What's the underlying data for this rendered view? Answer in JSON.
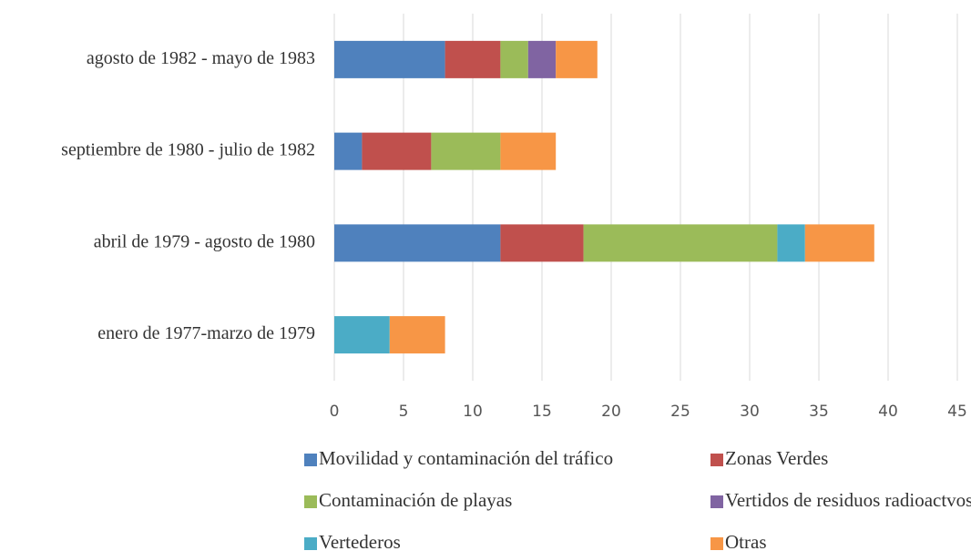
{
  "chart_data": {
    "type": "stacked_barh",
    "categories": [
      "agosto de 1982 - mayo de 1983",
      "septiembre de 1980 - julio de 1982",
      "abril de 1979 - agosto de 1980",
      "enero de 1977-marzo de 1979"
    ],
    "series": [
      {
        "name": "Movilidad y contaminación del tráfico",
        "color": "#4f81bd",
        "values": [
          8,
          2,
          12,
          0
        ]
      },
      {
        "name": "Zonas Verdes",
        "color": "#c0504d",
        "values": [
          4,
          5,
          6,
          0
        ]
      },
      {
        "name": "Contaminación de playas",
        "color": "#9bbb59",
        "values": [
          2,
          5,
          14,
          0
        ]
      },
      {
        "name": "Vertidos de residuos radioactvos",
        "color": "#8064a2",
        "values": [
          2,
          0,
          0,
          0
        ]
      },
      {
        "name": "Vertederos",
        "color": "#4bacc6",
        "values": [
          0,
          0,
          2,
          4
        ]
      },
      {
        "name": "Otras",
        "color": "#f79646",
        "values": [
          3,
          4,
          5,
          4
        ]
      }
    ],
    "xlim": [
      0,
      45
    ],
    "xticks": [
      0,
      5,
      10,
      15,
      20,
      25,
      30,
      35,
      40,
      45
    ],
    "grid": true
  }
}
